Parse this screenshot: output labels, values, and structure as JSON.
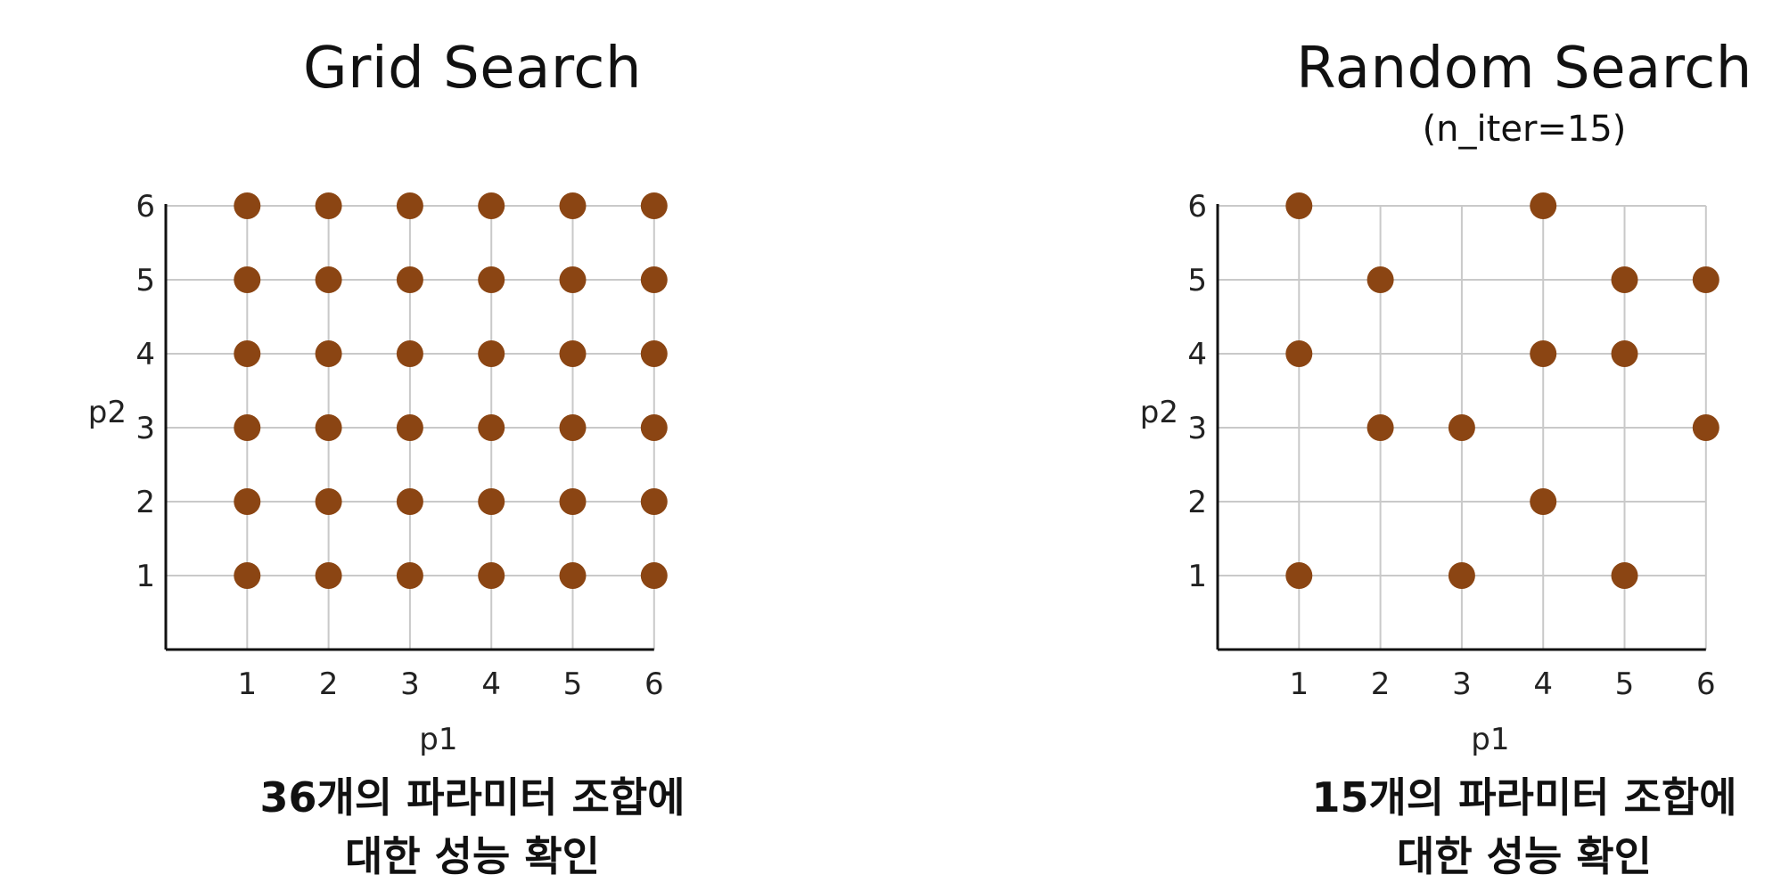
{
  "chart_data": [
    {
      "type": "scatter",
      "title": "Grid Search",
      "subtitle": "",
      "xlabel": "p1",
      "ylabel": "p2",
      "xlim": [
        0,
        6
      ],
      "ylim": [
        0,
        6
      ],
      "xticks": [
        "1",
        "2",
        "3",
        "4",
        "5",
        "6"
      ],
      "yticks": [
        "1",
        "2",
        "3",
        "4",
        "5",
        "6"
      ],
      "grid": true,
      "point_color": "#8B4513",
      "points": [
        [
          1,
          1
        ],
        [
          2,
          1
        ],
        [
          3,
          1
        ],
        [
          4,
          1
        ],
        [
          5,
          1
        ],
        [
          6,
          1
        ],
        [
          1,
          2
        ],
        [
          2,
          2
        ],
        [
          3,
          2
        ],
        [
          4,
          2
        ],
        [
          5,
          2
        ],
        [
          6,
          2
        ],
        [
          1,
          3
        ],
        [
          2,
          3
        ],
        [
          3,
          3
        ],
        [
          4,
          3
        ],
        [
          5,
          3
        ],
        [
          6,
          3
        ],
        [
          1,
          4
        ],
        [
          2,
          4
        ],
        [
          3,
          4
        ],
        [
          4,
          4
        ],
        [
          5,
          4
        ],
        [
          6,
          4
        ],
        [
          1,
          5
        ],
        [
          2,
          5
        ],
        [
          3,
          5
        ],
        [
          4,
          5
        ],
        [
          5,
          5
        ],
        [
          6,
          5
        ],
        [
          1,
          6
        ],
        [
          2,
          6
        ],
        [
          3,
          6
        ],
        [
          4,
          6
        ],
        [
          5,
          6
        ],
        [
          6,
          6
        ]
      ],
      "caption": [
        "36개의 파라미터 조합에",
        "대한 성능 확인"
      ]
    },
    {
      "type": "scatter",
      "title": "Random Search",
      "subtitle": "(n_iter=15)",
      "xlabel": "p1",
      "ylabel": "p2",
      "xlim": [
        0,
        6
      ],
      "ylim": [
        0,
        6
      ],
      "xticks": [
        "1",
        "2",
        "3",
        "4",
        "5",
        "6"
      ],
      "yticks": [
        "1",
        "2",
        "3",
        "4",
        "5",
        "6"
      ],
      "grid": true,
      "point_color": "#8B4513",
      "points": [
        [
          1,
          6
        ],
        [
          4,
          6
        ],
        [
          2,
          5
        ],
        [
          5,
          5
        ],
        [
          6,
          5
        ],
        [
          1,
          4
        ],
        [
          4,
          4
        ],
        [
          5,
          4
        ],
        [
          2,
          3
        ],
        [
          3,
          3
        ],
        [
          6,
          3
        ],
        [
          4,
          2
        ],
        [
          1,
          1
        ],
        [
          3,
          1
        ],
        [
          5,
          1
        ]
      ],
      "caption": [
        "15개의 파라미터 조합에",
        "대한 성능 확인"
      ]
    }
  ]
}
